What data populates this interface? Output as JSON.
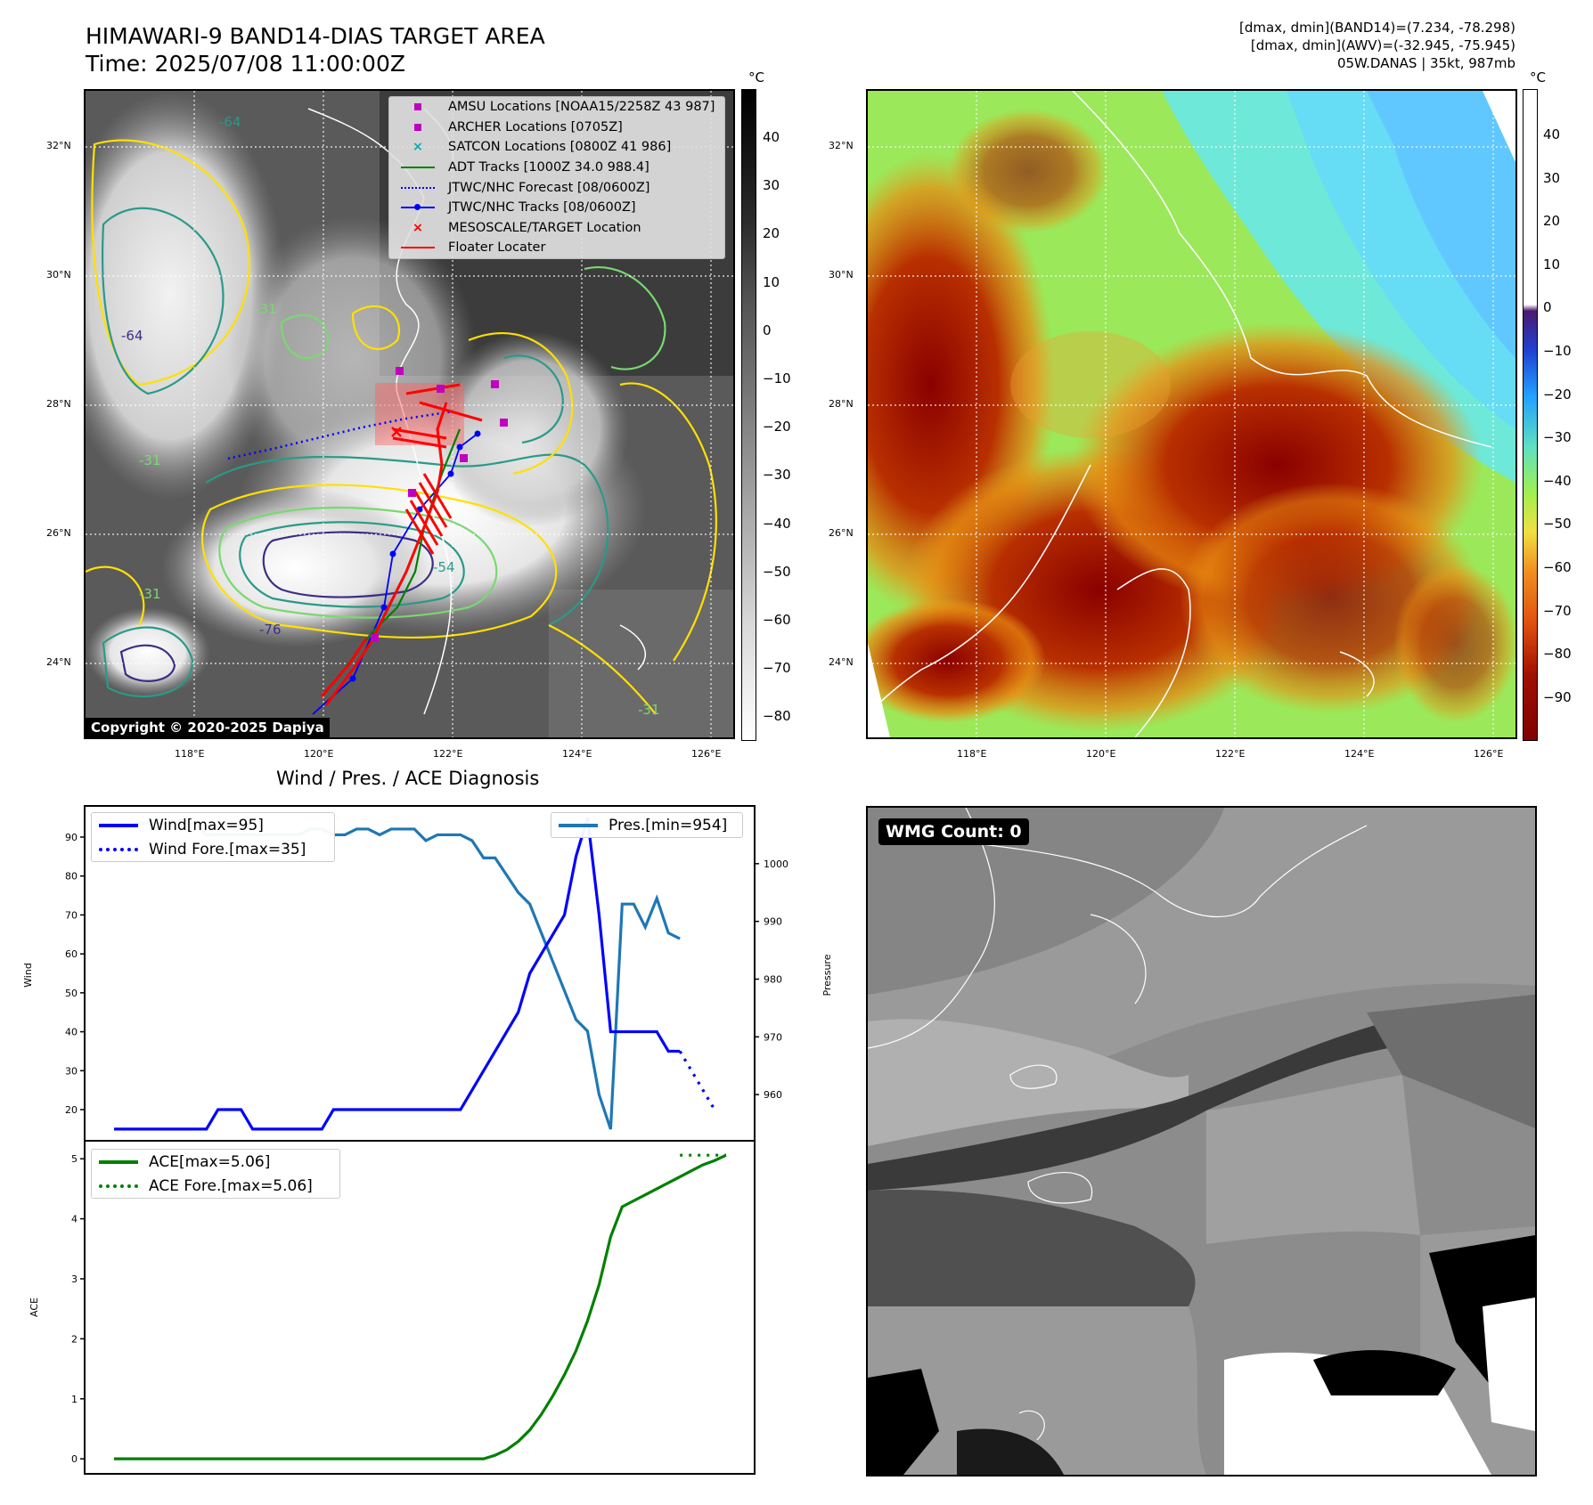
{
  "header": {
    "title": "HIMAWARI-9 BAND14-DIAS TARGET AREA",
    "time": "Time: 2025/07/08 11:00:00Z",
    "stats_line1": "[dmax, dmin](BAND14)=(7.234, -78.298)",
    "stats_line2": "[dmax, dmin](AWV)=(-32.945, -75.945)",
    "stats_line3": "05W.DANAS | 35kt, 987mb"
  },
  "map": {
    "lat_labels": [
      "32°N",
      "30°N",
      "28°N",
      "26°N",
      "24°N"
    ],
    "lon_labels": [
      "118°E",
      "120°E",
      "122°E",
      "124°E",
      "126°E"
    ],
    "contour_labels": [
      "-64",
      "-31",
      "-76",
      "-31",
      "-64",
      "-31",
      "-54",
      "-31"
    ],
    "copyright": "Copyright © 2020-2025 Dapiya"
  },
  "legend": {
    "items": [
      {
        "label": "AMSU Locations [NOAA15/2258Z 43 987]",
        "color": "#c000c0",
        "marker": "square"
      },
      {
        "label": "ARCHER Locations [0705Z]",
        "color": "#c000c0",
        "marker": "square"
      },
      {
        "label": "SATCON Locations [0800Z 41 986]",
        "color": "#00b0b0",
        "marker": "x"
      },
      {
        "label": "ADT Tracks [1000Z 34.0 988.4]",
        "color": "#008000",
        "marker": "line"
      },
      {
        "label": "JTWC/NHC Forecast [08/0600Z]",
        "color": "#0000ff",
        "marker": "dotted"
      },
      {
        "label": "JTWC/NHC Tracks [08/0600Z]",
        "color": "#0000ff",
        "marker": "line-dot"
      },
      {
        "label": "MESOSCALE/TARGET Location",
        "color": "#ff0000",
        "marker": "x"
      },
      {
        "label": "Floater Locater",
        "color": "#ff0000",
        "marker": "line"
      }
    ]
  },
  "colorbar_ir": {
    "unit": "°C",
    "ticks": [
      "40",
      "30",
      "20",
      "10",
      "0",
      "−10",
      "−20",
      "−30",
      "−40",
      "−50",
      "−60",
      "−70",
      "−80"
    ]
  },
  "colorbar_wv": {
    "unit": "°C",
    "ticks": [
      "40",
      "30",
      "20",
      "10",
      "0",
      "−10",
      "−20",
      "−30",
      "−40",
      "−50",
      "−60",
      "−70",
      "−80",
      "−90"
    ]
  },
  "diagnosis": {
    "title": "Wind / Pres. / ACE Diagnosis",
    "wind_ylabel": "Wind",
    "pres_ylabel": "Pressure",
    "ace_ylabel": "ACE",
    "wind_ticks": [
      "90",
      "80",
      "70",
      "60",
      "50",
      "40",
      "30",
      "20"
    ],
    "pres_ticks": [
      "1000",
      "990",
      "980",
      "970",
      "960"
    ],
    "ace_ticks": [
      "5",
      "4",
      "3",
      "2",
      "1",
      "0"
    ],
    "legend_wind": "Wind[max=95]",
    "legend_wind_fore": "Wind Fore.[max=35]",
    "legend_pres": "Pres.[min=954]",
    "legend_ace": "ACE[max=5.06]",
    "legend_ace_fore": "ACE Fore.[max=5.06]",
    "wind_color": "#0000ff",
    "pres_color": "#1f77b4",
    "ace_color": "#008000"
  },
  "wmg": {
    "label": "WMG Count: 0"
  },
  "chart_data": {
    "type": "line",
    "title": "Wind / Pres. / ACE Diagnosis",
    "x_count": 54,
    "series": [
      {
        "name": "Wind[max=95]",
        "axis": "Wind",
        "values": [
          15,
          15,
          15,
          15,
          15,
          15,
          15,
          15,
          15,
          20,
          20,
          20,
          15,
          15,
          15,
          15,
          15,
          15,
          15,
          20,
          20,
          20,
          20,
          20,
          20,
          20,
          20,
          20,
          20,
          20,
          20,
          25,
          30,
          35,
          40,
          45,
          55,
          60,
          65,
          70,
          85,
          95,
          70,
          40,
          40,
          40,
          40,
          40,
          35,
          35
        ]
      },
      {
        "name": "Wind Fore.[max=35]",
        "axis": "Wind",
        "x_start": 49,
        "values": [
          35,
          30,
          25,
          20
        ]
      },
      {
        "name": "Pres.[min=954]",
        "axis": "Pressure",
        "values": [
          1007,
          1007,
          1007,
          1007,
          1007,
          1007,
          1005,
          1005,
          1005,
          1005,
          1005,
          1005,
          1005,
          1005,
          1005,
          1006,
          1006,
          1005,
          1005,
          1006,
          1006,
          1005,
          1006,
          1006,
          1006,
          1004,
          1005,
          1005,
          1005,
          1004,
          1001,
          1001,
          998,
          995,
          993,
          988,
          983,
          978,
          973,
          971,
          960,
          954,
          993,
          993,
          989,
          994,
          988,
          987
        ],
        "x_start": 2
      },
      {
        "name": "ACE[max=5.06]",
        "axis": "ACE",
        "values": [
          0,
          0,
          0,
          0,
          0,
          0,
          0,
          0,
          0,
          0,
          0,
          0,
          0,
          0,
          0,
          0,
          0,
          0,
          0,
          0,
          0,
          0,
          0,
          0,
          0,
          0,
          0,
          0,
          0,
          0,
          0,
          0,
          0,
          0.06,
          0.15,
          0.29,
          0.48,
          0.74,
          1.05,
          1.4,
          1.8,
          2.3,
          2.9,
          3.7,
          4.2,
          4.3,
          4.4,
          4.5,
          4.6,
          4.7,
          4.8,
          4.9,
          4.97,
          5.06
        ]
      },
      {
        "name": "ACE Fore.[max=5.06]",
        "axis": "ACE",
        "x_start": 49,
        "values": [
          5.06,
          5.06,
          5.06,
          5.06,
          5.06
        ]
      }
    ],
    "ylim_wind": [
      12,
      98
    ],
    "ylim_pressure": [
      952,
      1010
    ],
    "ylim_ace": [
      -0.25,
      5.3
    ]
  }
}
